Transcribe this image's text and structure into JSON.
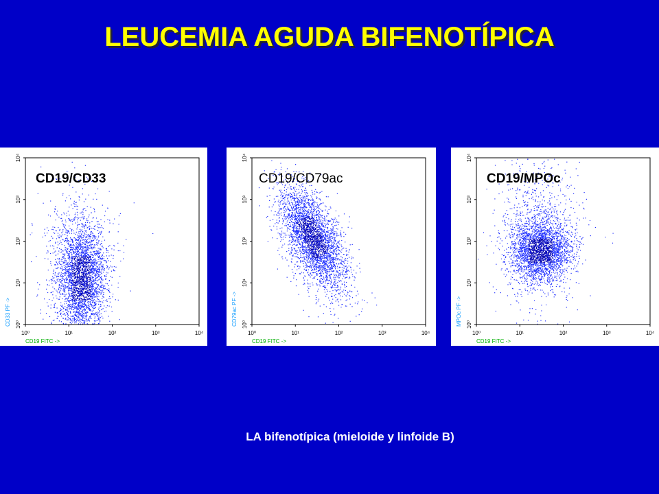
{
  "title": "LEUCEMIA AGUDA BIFENOTÍPICA",
  "panels": [
    {
      "label": "CD19/CD33",
      "label_bold": true,
      "x_axis_label": "CD19 FITC ->",
      "y_axis_label": "CD33 PF ->"
    },
    {
      "label": "CD19/CD79ac",
      "label_bold": false,
      "x_axis_label": "CD19 FITC ->",
      "y_axis_label": "CD79ac PF ->"
    },
    {
      "label": "CD19/MPOc",
      "label_bold": true,
      "x_axis_label": "CD19 FITC ->",
      "y_axis_label": "MPOc PF ->"
    }
  ],
  "ticks": [
    "10⁰",
    "10¹",
    "10²",
    "10³",
    "10⁴"
  ],
  "caption": "LA bifenotípica (mieloide y linfoide B)"
}
